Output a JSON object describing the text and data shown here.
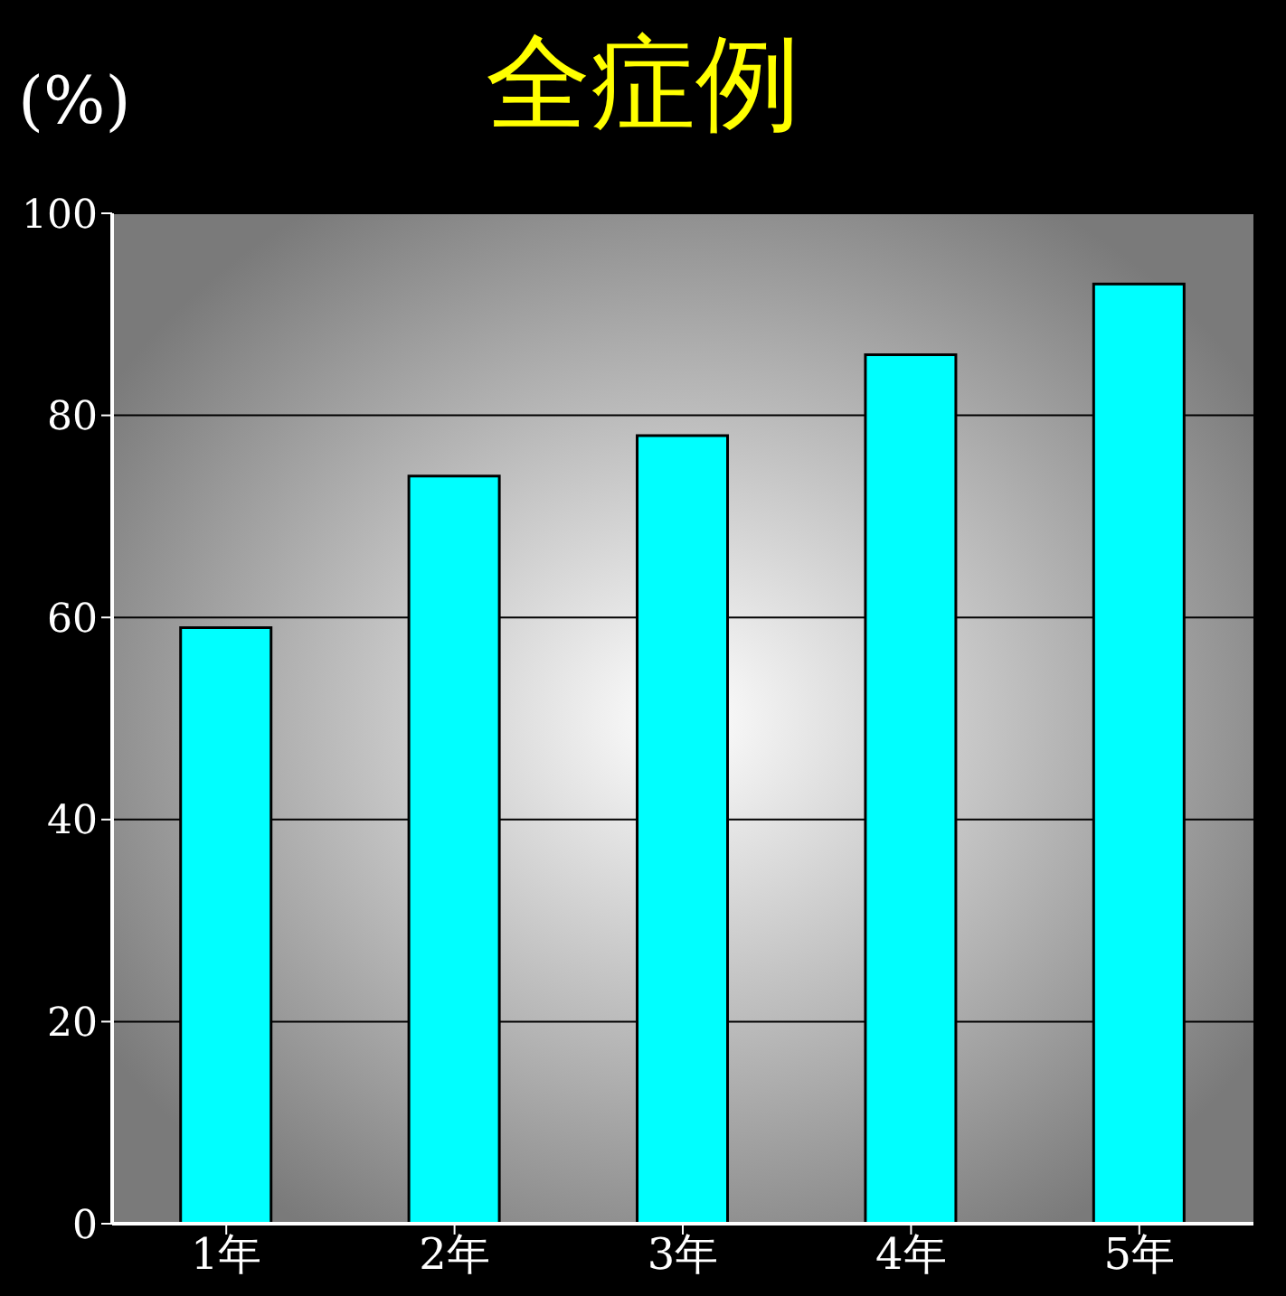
{
  "chart_data": {
    "type": "bar",
    "title": "全症例",
    "ylabel": "(%)",
    "categories": [
      "1年",
      "2年",
      "3年",
      "4年",
      "5年"
    ],
    "values": [
      59,
      74,
      78,
      86,
      93
    ],
    "color": "#00ffff",
    "ylim": [
      0,
      100
    ],
    "yticks": [
      0,
      20,
      40,
      60,
      80,
      100
    ],
    "grid": "y"
  }
}
